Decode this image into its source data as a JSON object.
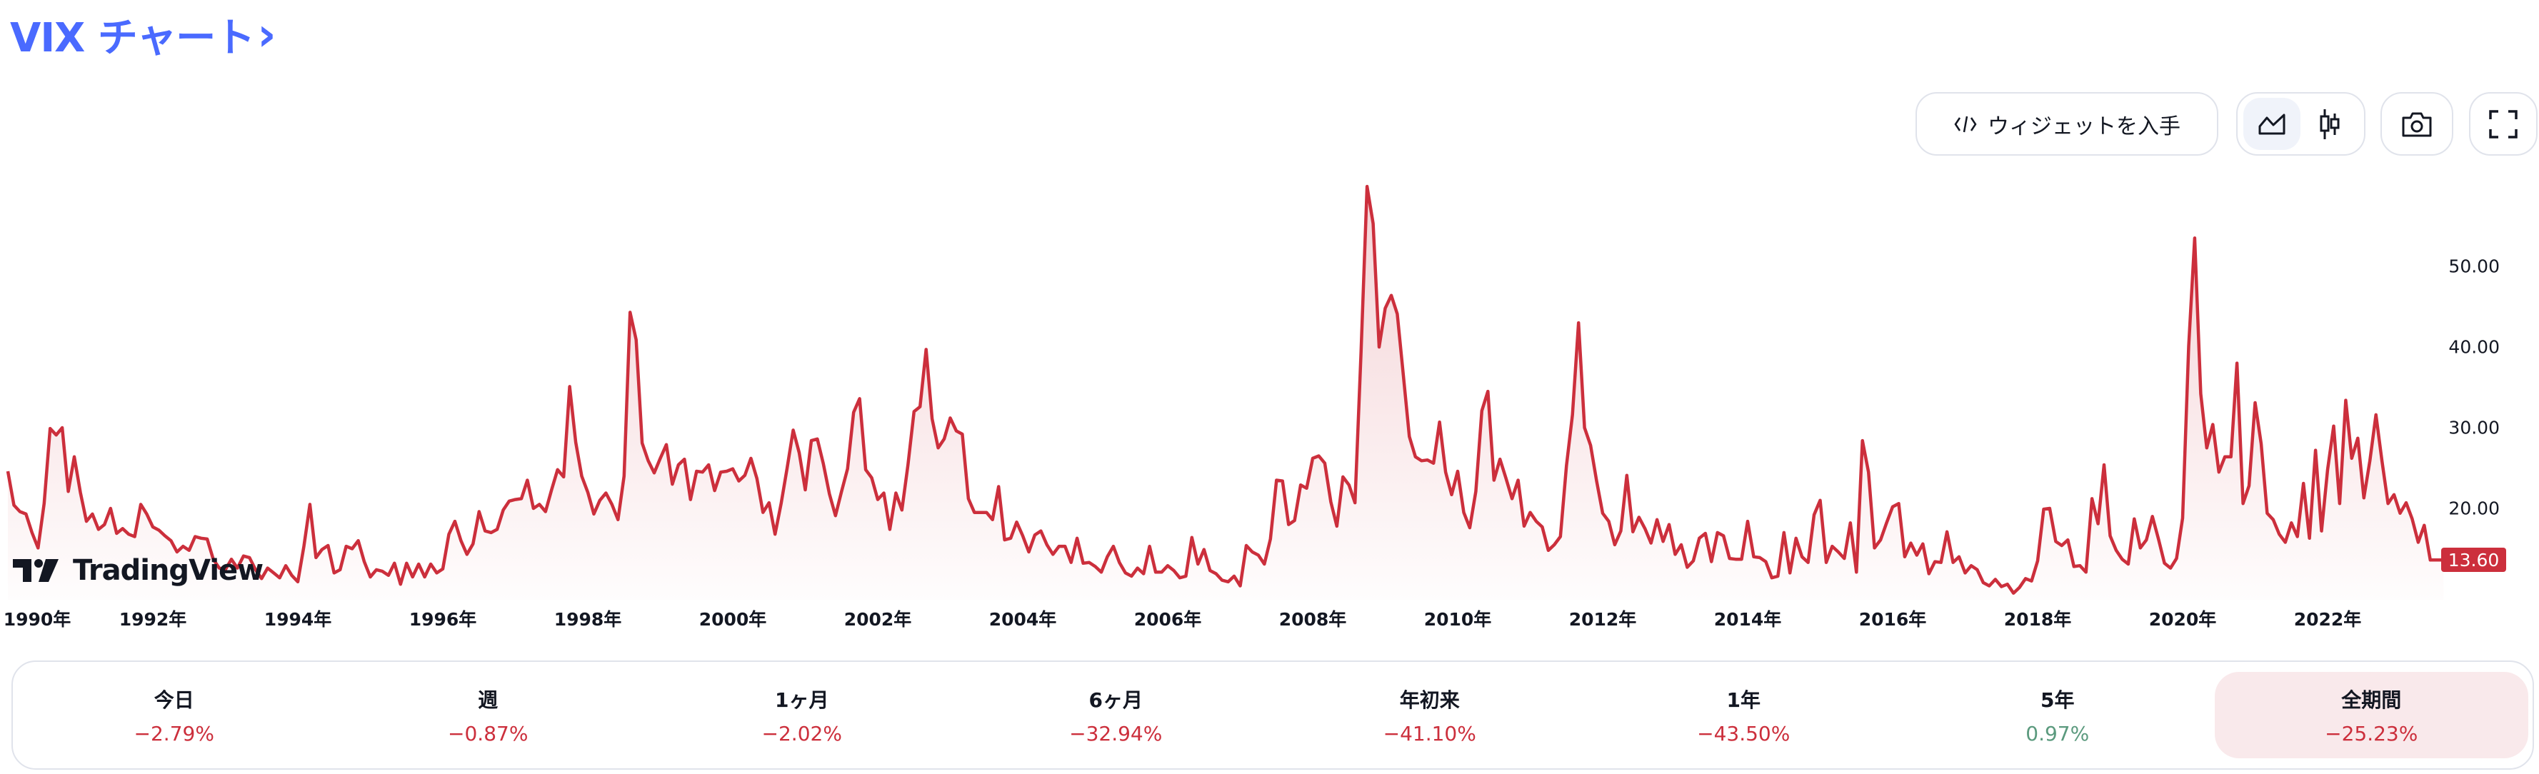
{
  "header": {
    "title": "VIX チャート",
    "chevron_icon": "chevron-right-icon"
  },
  "toolbar": {
    "widget_label": "ウィジェットを入手",
    "widget_icon": "code-icon",
    "chart_types": [
      {
        "icon": "area-chart-icon",
        "active": true
      },
      {
        "icon": "candlestick-icon",
        "active": false
      }
    ],
    "camera_icon": "camera-icon",
    "fullscreen_icon": "fullscreen-icon"
  },
  "logo": {
    "text": "TradingView"
  },
  "colors": {
    "line": "#cc2f3c",
    "negative": "#cc2f3c",
    "positive": "#5b9a7e",
    "accent": "#4a6aff",
    "highlight": "#f9e9eb"
  },
  "chart_data": {
    "type": "area",
    "start": "1990-01",
    "frequency": "monthly",
    "ylim": [
      0,
      60
    ],
    "yticks": [
      "20.00",
      "30.00",
      "40.00",
      "50.00"
    ],
    "xticks": [
      "1990年",
      "1992年",
      "1994年",
      "1996年",
      "1998年",
      "2000年",
      "2002年",
      "2004年",
      "2006年",
      "2008年",
      "2010年",
      "2012年",
      "2014年",
      "2016年",
      "2018年",
      "2020年",
      "2022年"
    ],
    "last_price": "13.60",
    "grid": false,
    "values": [
      24.6,
      20.4,
      19.6,
      19.3,
      17.0,
      15.1,
      20.6,
      29.9,
      29.1,
      30.0,
      22.1,
      26.4,
      22.0,
      18.4,
      19.3,
      17.4,
      18.0,
      20.0,
      16.9,
      17.5,
      16.8,
      16.5,
      20.5,
      19.3,
      17.7,
      17.3,
      16.6,
      16.0,
      14.6,
      15.3,
      14.8,
      16.5,
      16.3,
      16.2,
      13.7,
      12.6,
      12.4,
      13.7,
      12.6,
      14.1,
      13.9,
      12.4,
      11.3,
      12.6,
      12.0,
      11.4,
      12.9,
      11.7,
      10.9,
      15.3,
      20.5,
      13.9,
      14.9,
      15.4,
      12.0,
      12.4,
      15.3,
      15.0,
      16.0,
      13.4,
      11.5,
      12.4,
      12.2,
      11.7,
      13.2,
      10.6,
      13.2,
      11.5,
      13.1,
      11.5,
      13.1,
      12.0,
      12.5,
      16.8,
      18.4,
      16.0,
      14.3,
      15.6,
      19.6,
      17.2,
      17.0,
      17.4,
      19.8,
      20.9,
      21.1,
      21.2,
      23.5,
      20.0,
      20.5,
      19.6,
      22.3,
      24.8,
      23.9,
      35.1,
      28.2,
      24.0,
      22.0,
      19.3,
      21.0,
      21.9,
      20.5,
      18.6,
      24.0,
      44.3,
      40.9,
      28.1,
      25.9,
      24.4,
      26.2,
      27.9,
      23.0,
      25.4,
      26.1,
      21.1,
      24.6,
      24.5,
      25.4,
      22.2,
      24.5,
      24.6,
      24.9,
      23.4,
      24.1,
      26.2,
      23.7,
      19.5,
      20.7,
      16.8,
      20.6,
      25.0,
      29.7,
      26.9,
      22.3,
      28.4,
      28.6,
      25.5,
      21.8,
      19.1,
      22.1,
      24.9,
      31.9,
      33.6,
      24.8,
      23.8,
      21.1,
      21.9,
      17.4,
      21.9,
      19.8,
      25.4,
      32.0,
      32.6,
      39.7,
      31.1,
      27.5,
      28.6,
      31.2,
      29.6,
      29.2,
      21.2,
      19.5,
      19.5,
      19.5,
      18.6,
      22.7,
      16.1,
      16.3,
      18.3,
      16.6,
      14.6,
      16.7,
      17.2,
      15.5,
      14.3,
      15.3,
      15.3,
      13.3,
      16.3,
      13.2,
      13.3,
      12.8,
      12.1,
      14.0,
      15.3,
      13.3,
      12.0,
      11.6,
      12.6,
      11.9,
      15.3,
      12.1,
      12.1,
      12.9,
      12.3,
      11.4,
      11.6,
      16.4,
      13.1,
      14.9,
      12.3,
      11.9,
      11.1,
      10.9,
      11.6,
      10.4,
      15.4,
      14.6,
      14.2,
      13.1,
      16.2,
      23.5,
      23.4,
      18.0,
      18.5,
      22.9,
      22.5,
      26.2,
      26.5,
      25.6,
      20.8,
      17.8,
      23.9,
      22.9,
      20.7,
      39.4,
      59.9,
      55.3,
      40.0,
      44.8,
      46.4,
      44.1,
      36.5,
      28.9,
      26.4,
      25.9,
      26.0,
      25.6,
      30.7,
      24.5,
      21.7,
      24.6,
      19.5,
      17.6,
      22.1,
      32.1,
      34.5,
      23.5,
      26.1,
      23.7,
      21.2,
      23.5,
      17.8,
      19.5,
      18.4,
      17.7,
      14.8,
      15.5,
      16.5,
      25.3,
      31.6,
      43.0,
      30.0,
      27.8,
      23.4,
      19.4,
      18.4,
      15.5,
      17.2,
      24.1,
      17.1,
      18.9,
      17.5,
      15.7,
      18.6,
      15.9,
      18.0,
      14.3,
      15.5,
      12.7,
      13.5,
      16.3,
      16.9,
      13.4,
      17.0,
      16.6,
      13.8,
      13.7,
      13.7,
      18.4,
      14.0,
      13.9,
      13.4,
      11.4,
      11.6,
      17.0,
      12.0,
      16.3,
      14.0,
      13.3,
      19.2,
      21.0,
      13.3,
      15.3,
      14.6,
      13.8,
      18.2,
      12.1,
      28.4,
      24.5,
      15.1,
      16.1,
      18.2,
      20.2,
      20.6,
      14.0,
      15.7,
      14.2,
      15.6,
      11.9,
      13.4,
      13.3,
      17.1,
      13.3,
      14.0,
      12.0,
      12.9,
      12.4,
      10.8,
      10.4,
      11.2,
      10.3,
      10.6,
      9.5,
      10.2,
      11.3,
      11.0,
      13.5,
      19.9,
      20.0,
      15.9,
      15.4,
      16.1,
      12.8,
      12.9,
      12.1,
      21.2,
      18.1,
      25.4,
      16.6,
      14.8,
      13.7,
      13.1,
      18.7,
      15.1,
      16.1,
      19.0,
      16.2,
      13.2,
      12.6,
      13.8,
      18.8,
      40.1,
      53.5,
      34.2,
      27.5,
      30.4,
      24.5,
      26.4,
      26.4,
      38.0,
      20.6,
      22.8,
      33.1,
      28.0,
      19.4,
      18.6,
      16.8,
      15.8,
      18.2,
      16.5,
      23.1,
      16.3,
      27.2,
      17.2,
      24.8,
      30.2,
      20.6,
      33.4,
      26.2,
      28.7,
      21.3,
      25.9,
      31.6,
      25.9,
      20.6,
      21.7,
      19.4,
      20.7,
      18.7,
      15.8,
      17.9,
      13.6,
      13.6
    ]
  },
  "stats": [
    {
      "label": "今日",
      "value": "−2.79%",
      "trend": "negative",
      "active": false
    },
    {
      "label": "週",
      "value": "−0.87%",
      "trend": "negative",
      "active": false
    },
    {
      "label": "1ヶ月",
      "value": "−2.02%",
      "trend": "negative",
      "active": false
    },
    {
      "label": "6ヶ月",
      "value": "−32.94%",
      "trend": "negative",
      "active": false
    },
    {
      "label": "年初来",
      "value": "−41.10%",
      "trend": "negative",
      "active": false
    },
    {
      "label": "1年",
      "value": "−43.50%",
      "trend": "negative",
      "active": false
    },
    {
      "label": "5年",
      "value": "0.97%",
      "trend": "positive",
      "active": false
    },
    {
      "label": "全期間",
      "value": "−25.23%",
      "trend": "negative",
      "active": true
    }
  ]
}
